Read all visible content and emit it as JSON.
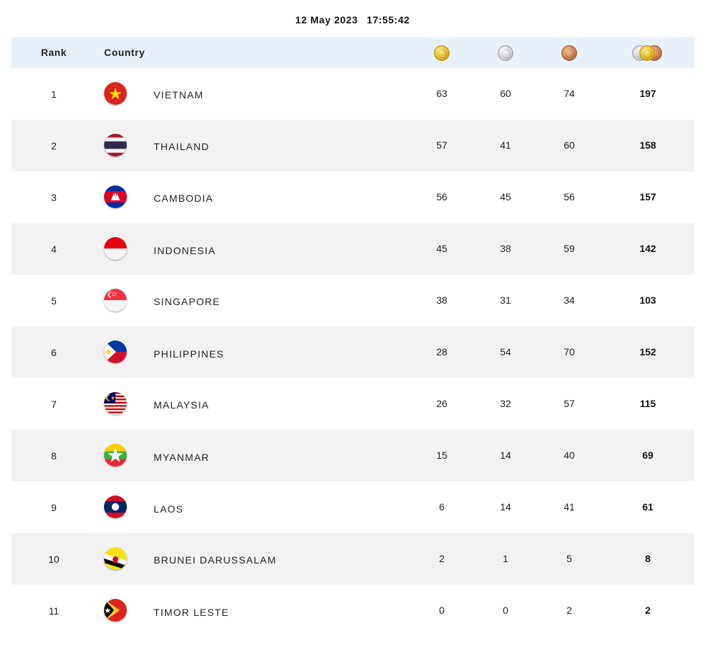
{
  "timestamp": {
    "date": "12 May 2023",
    "time": "17:55:42"
  },
  "header": {
    "rank_label": "Rank",
    "country_label": "Country",
    "icons": [
      "gold-medal-icon",
      "silver-medal-icon",
      "bronze-medal-icon",
      "all-medals-icon"
    ]
  },
  "colors": {
    "header_bg": "#e8f1fa",
    "alt_row_bg": "#f2f2f2"
  },
  "rows": [
    {
      "rank": "1",
      "country": "VIETNAM",
      "flag": "vietnam-flag-icon",
      "gold": "63",
      "silver": "60",
      "bronze": "74",
      "total": "197"
    },
    {
      "rank": "2",
      "country": "THAILAND",
      "flag": "thailand-flag-icon",
      "gold": "57",
      "silver": "41",
      "bronze": "60",
      "total": "158"
    },
    {
      "rank": "3",
      "country": "CAMBODIA",
      "flag": "cambodia-flag-icon",
      "gold": "56",
      "silver": "45",
      "bronze": "56",
      "total": "157"
    },
    {
      "rank": "4",
      "country": "INDONESIA",
      "flag": "indonesia-flag-icon",
      "gold": "45",
      "silver": "38",
      "bronze": "59",
      "total": "142"
    },
    {
      "rank": "5",
      "country": "SINGAPORE",
      "flag": "singapore-flag-icon",
      "gold": "38",
      "silver": "31",
      "bronze": "34",
      "total": "103"
    },
    {
      "rank": "6",
      "country": "PHILIPPINES",
      "flag": "philippines-flag-icon",
      "gold": "28",
      "silver": "54",
      "bronze": "70",
      "total": "152"
    },
    {
      "rank": "7",
      "country": "MALAYSIA",
      "flag": "malaysia-flag-icon",
      "gold": "26",
      "silver": "32",
      "bronze": "57",
      "total": "115"
    },
    {
      "rank": "8",
      "country": "MYANMAR",
      "flag": "myanmar-flag-icon",
      "gold": "15",
      "silver": "14",
      "bronze": "40",
      "total": "69"
    },
    {
      "rank": "9",
      "country": "LAOS",
      "flag": "laos-flag-icon",
      "gold": "6",
      "silver": "14",
      "bronze": "41",
      "total": "61"
    },
    {
      "rank": "10",
      "country": "BRUNEI DARUSSALAM",
      "flag": "brunei-flag-icon",
      "gold": "2",
      "silver": "1",
      "bronze": "5",
      "total": "8"
    },
    {
      "rank": "11",
      "country": "TIMOR LESTE",
      "flag": "timor-leste-flag-icon",
      "gold": "0",
      "silver": "0",
      "bronze": "2",
      "total": "2"
    }
  ]
}
